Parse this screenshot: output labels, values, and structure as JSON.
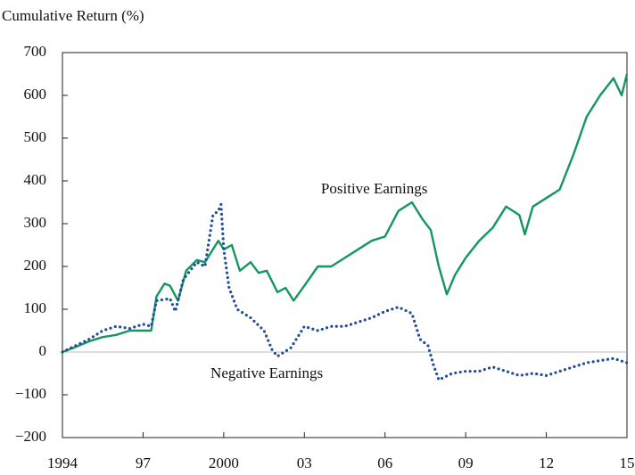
{
  "chart_data": {
    "type": "line",
    "y_axis_label": "Cumulative Return (%)",
    "xlim": [
      1994,
      2015
    ],
    "xticks": [
      1994,
      {
        "value": 1997,
        "label": "97"
      },
      2000,
      {
        "value": 2003,
        "label": "03"
      },
      {
        "value": 2006,
        "label": "06"
      },
      {
        "value": 2009,
        "label": "09"
      },
      {
        "value": 2012,
        "label": "12"
      },
      {
        "value": 2015,
        "label": "15"
      }
    ],
    "ylim": [
      -200,
      700
    ],
    "yticks": [
      {
        "value": -200,
        "label": "−200"
      },
      {
        "value": -100,
        "label": "−100"
      },
      0,
      100,
      200,
      300,
      400,
      500,
      600,
      700
    ],
    "zero_line": true,
    "annotations": [
      {
        "text": "Positive Earnings",
        "x": 2005.6,
        "y": 379
      },
      {
        "text": "Negative Earnings",
        "x": 2001.6,
        "y": -52
      }
    ],
    "series": [
      {
        "name": "Positive Earnings",
        "color": "#13975f",
        "style": "solid",
        "x": [
          1994,
          1994.5,
          1995,
          1995.5,
          1996,
          1996.5,
          1997,
          1997.3,
          1997.5,
          1997.8,
          1998,
          1998.3,
          1998.6,
          1999,
          1999.3,
          1999.6,
          1999.8,
          2000,
          2000.3,
          2000.6,
          2001,
          2001.3,
          2001.6,
          2002,
          2002.3,
          2002.6,
          2003,
          2003.5,
          2004,
          2004.5,
          2005,
          2005.5,
          2006,
          2006.5,
          2007,
          2007.4,
          2007.7,
          2008,
          2008.3,
          2008.6,
          2009,
          2009.5,
          2010,
          2010.5,
          2011,
          2011.2,
          2011.5,
          2012,
          2012.5,
          2013,
          2013.5,
          2014,
          2014.5,
          2014.8,
          2015
        ],
        "values": [
          0,
          12,
          25,
          35,
          40,
          50,
          50,
          50,
          130,
          160,
          155,
          120,
          190,
          215,
          210,
          240,
          260,
          240,
          250,
          190,
          210,
          185,
          190,
          140,
          150,
          120,
          155,
          200,
          200,
          220,
          240,
          260,
          270,
          330,
          350,
          310,
          285,
          200,
          135,
          180,
          220,
          260,
          290,
          340,
          320,
          275,
          340,
          360,
          380,
          460,
          550,
          600,
          640,
          600,
          650
        ]
      },
      {
        "name": "Negative Earnings",
        "color": "#1f4e9a",
        "style": "dotted",
        "x": [
          1994,
          1994.5,
          1995,
          1995.5,
          1996,
          1996.5,
          1997,
          1997.3,
          1997.5,
          1998,
          1998.2,
          1998.5,
          1999,
          1999.3,
          1999.6,
          1999.8,
          1999.9,
          2000,
          2000.2,
          2000.5,
          2001,
          2001.5,
          2001.8,
          2002,
          2002.5,
          2003,
          2003.5,
          2004,
          2004.5,
          2005,
          2005.5,
          2006,
          2006.5,
          2007,
          2007.3,
          2007.6,
          2007.8,
          2008,
          2008.5,
          2009,
          2009.5,
          2010,
          2010.5,
          2011,
          2011.5,
          2012,
          2012.5,
          2013,
          2013.5,
          2014,
          2014.5,
          2015
        ],
        "values": [
          0,
          15,
          30,
          50,
          60,
          55,
          65,
          60,
          120,
          125,
          95,
          170,
          210,
          200,
          320,
          330,
          345,
          240,
          150,
          100,
          80,
          50,
          5,
          -10,
          10,
          60,
          50,
          60,
          60,
          70,
          80,
          95,
          105,
          90,
          30,
          15,
          -30,
          -65,
          -50,
          -45,
          -45,
          -35,
          -45,
          -55,
          -50,
          -55,
          -45,
          -35,
          -25,
          -20,
          -15,
          -25
        ]
      }
    ]
  }
}
